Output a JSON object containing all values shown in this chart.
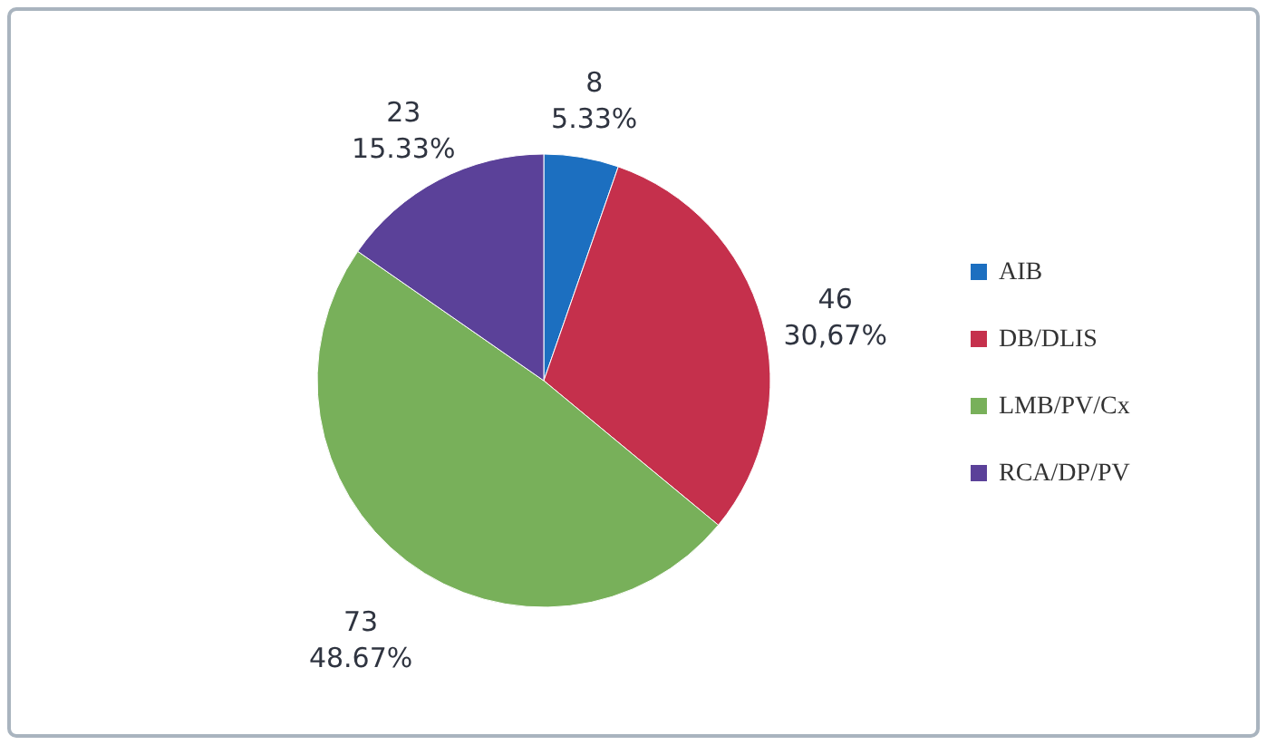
{
  "chart_data": {
    "type": "pie",
    "categories": [
      "AIB",
      "DB/DLIS",
      "LMB/PV/Cx",
      "RCA/DP/PV"
    ],
    "values": [
      8,
      46,
      73,
      23
    ],
    "colors": [
      "#1c6fc0",
      "#c5304c",
      "#78b05a",
      "#5b4199"
    ],
    "value_labels": [
      "8\n5.33%",
      "46\n30,67%",
      "73\n48.67%",
      "23\n15.33%"
    ],
    "legend": "right"
  }
}
